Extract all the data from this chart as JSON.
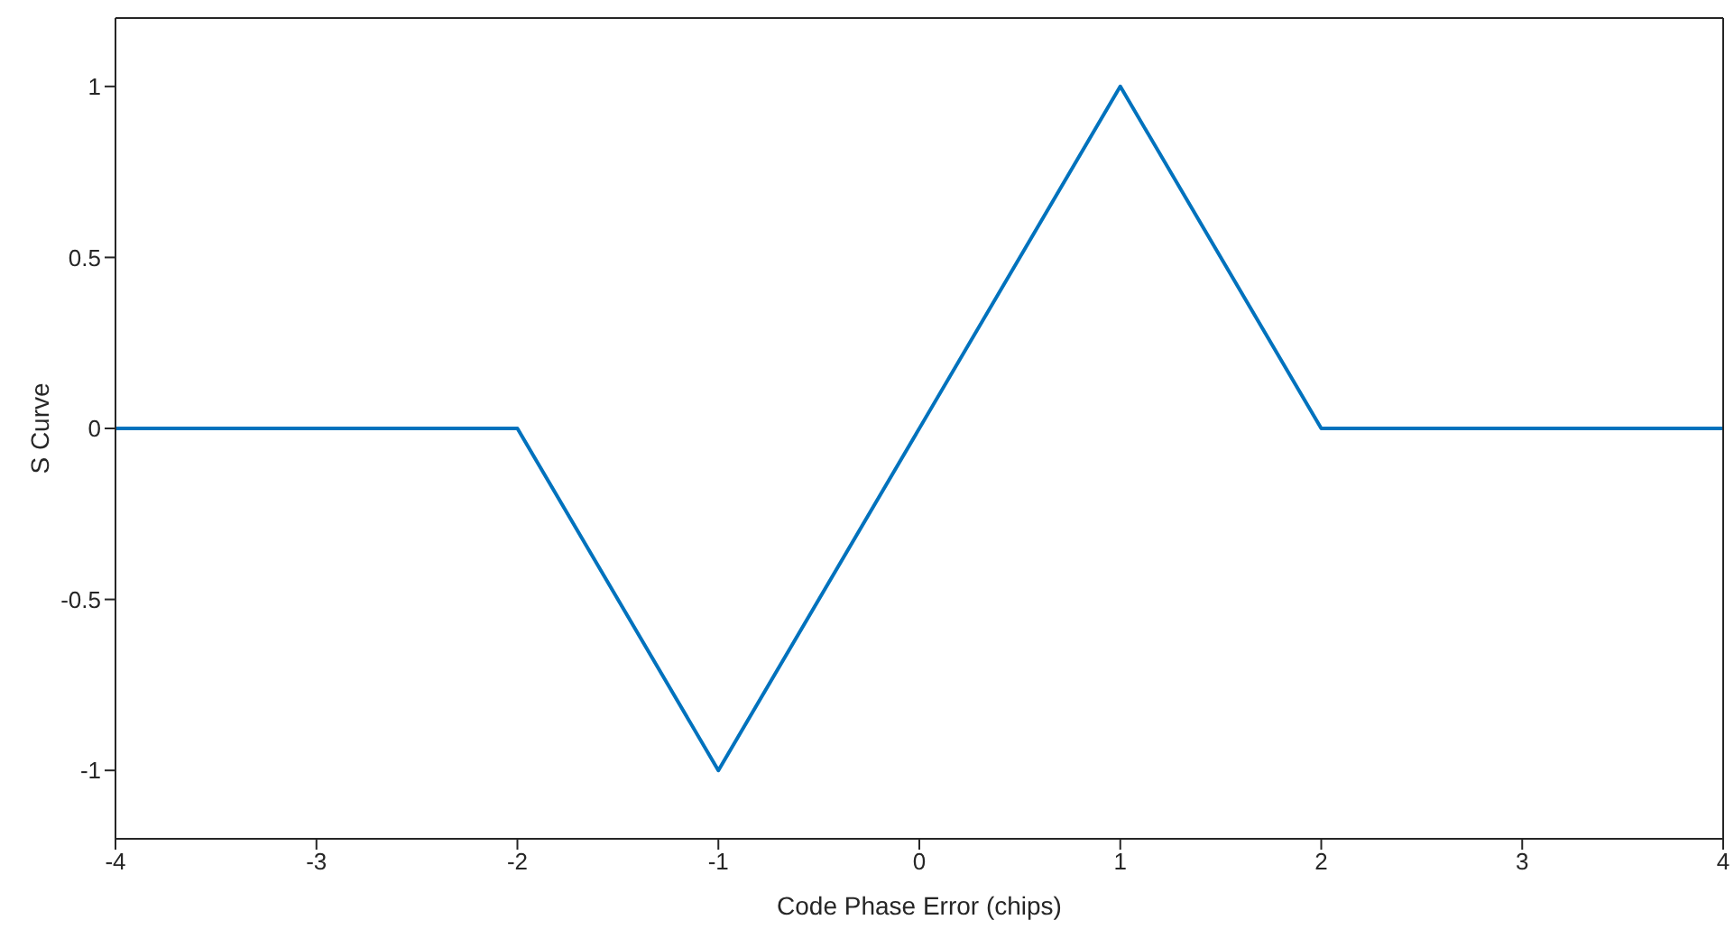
{
  "chart_data": {
    "type": "line",
    "xlabel": "Code Phase Error (chips)",
    "ylabel": "S Curve",
    "x": [
      -4,
      -2,
      -1,
      1,
      2,
      4
    ],
    "series": [
      {
        "color": "#0072bd",
        "values": [
          0,
          0,
          -1,
          1,
          0,
          0
        ]
      }
    ],
    "xlim": [
      -4,
      4
    ],
    "xticks": [
      -4,
      -3,
      -2,
      -1,
      0,
      1,
      2,
      3,
      4
    ],
    "ylim": [
      -1.2,
      1.2
    ],
    "yticks": [
      -1,
      -0.5,
      0,
      0.5,
      1
    ],
    "grid": false,
    "legend": false,
    "marker": "none",
    "line_style": "solid"
  }
}
